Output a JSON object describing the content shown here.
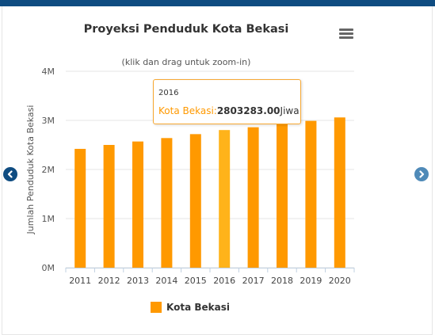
{
  "header": {
    "accent_color": "#0f4c81"
  },
  "navigation": {
    "prev_icon": "chevron-left-icon",
    "next_icon": "chevron-right-icon"
  },
  "menu": {
    "icon": "hamburger-menu-icon"
  },
  "tooltip": {
    "header": "2016",
    "series_label": "Kota Bekasi:",
    "value": "2803283.00",
    "unit": "Jiwa"
  },
  "chart_data": {
    "type": "bar",
    "title": "Proyeksi Penduduk Kota Bekasi",
    "subtitle": "(klik dan drag untuk zoom-in)",
    "xlabel": "",
    "ylabel": "Jumlah Penduduk Kota Bekasi",
    "categories": [
      "2011",
      "2012",
      "2013",
      "2014",
      "2015",
      "2016",
      "2017",
      "2018",
      "2019",
      "2020"
    ],
    "series": [
      {
        "name": "Kota Bekasi",
        "color": "#ff9900",
        "values": [
          2420000,
          2500000,
          2570000,
          2640000,
          2720000,
          2803283,
          2860000,
          2920000,
          2990000,
          3060000
        ]
      }
    ],
    "ylim": [
      0,
      4000000
    ],
    "yticks": [
      "0M",
      "1M",
      "2M",
      "3M",
      "4M"
    ],
    "highlighted_category": "2016",
    "highlight_color": "#ffb31a",
    "grid": true,
    "legend_position": "bottom"
  }
}
